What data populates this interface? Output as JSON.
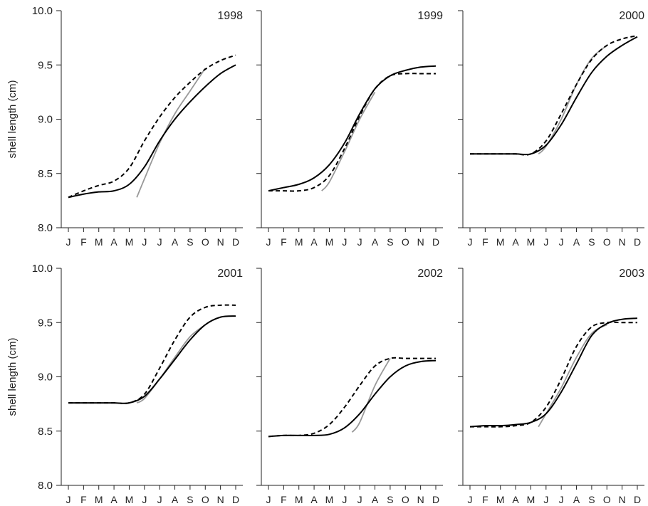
{
  "chart_data": {
    "type": "line",
    "ylabel": "shell length (cm)",
    "ylim": [
      8.0,
      10.0
    ],
    "yticks": [
      8.0,
      8.5,
      9.0,
      9.5,
      10.0
    ],
    "ytick_labels": [
      "8.0",
      "8.5",
      "9.0",
      "9.5",
      "10.0"
    ],
    "months": [
      "J",
      "F",
      "M",
      "A",
      "M",
      "J",
      "J",
      "A",
      "S",
      "O",
      "N",
      "D"
    ],
    "xlim": [
      1,
      12
    ],
    "legend": "none",
    "grid": false,
    "styles": {
      "solid": {
        "color": "#000000",
        "dash": ""
      },
      "dashed": {
        "color": "#000000",
        "dash": "6,4"
      },
      "gray": {
        "color": "#999999",
        "dash": ""
      }
    },
    "panels": [
      {
        "title": "1998",
        "series": [
          {
            "style": "solid",
            "points": [
              [
                1,
                8.28
              ],
              [
                2,
                8.31
              ],
              [
                3,
                8.33
              ],
              [
                4,
                8.34
              ],
              [
                5,
                8.4
              ],
              [
                6,
                8.56
              ],
              [
                7,
                8.8
              ],
              [
                8,
                9.0
              ],
              [
                9,
                9.16
              ],
              [
                10,
                9.3
              ],
              [
                11,
                9.42
              ],
              [
                12,
                9.5
              ]
            ]
          },
          {
            "style": "dashed",
            "points": [
              [
                1,
                8.28
              ],
              [
                2,
                8.34
              ],
              [
                3,
                8.39
              ],
              [
                4,
                8.43
              ],
              [
                5,
                8.55
              ],
              [
                6,
                8.8
              ],
              [
                7,
                9.02
              ],
              [
                8,
                9.2
              ],
              [
                9,
                9.34
              ],
              [
                10,
                9.46
              ],
              [
                11,
                9.54
              ],
              [
                12,
                9.59
              ]
            ]
          },
          {
            "style": "gray",
            "points": [
              [
                5.5,
                8.28
              ],
              [
                6,
                8.45
              ],
              [
                7,
                8.78
              ],
              [
                8,
                9.05
              ],
              [
                9,
                9.26
              ],
              [
                10,
                9.47
              ]
            ]
          }
        ]
      },
      {
        "title": "1999",
        "series": [
          {
            "style": "solid",
            "points": [
              [
                1,
                8.34
              ],
              [
                2,
                8.37
              ],
              [
                3,
                8.4
              ],
              [
                4,
                8.46
              ],
              [
                5,
                8.58
              ],
              [
                6,
                8.78
              ],
              [
                7,
                9.05
              ],
              [
                8,
                9.28
              ],
              [
                9,
                9.4
              ],
              [
                10,
                9.45
              ],
              [
                11,
                9.48
              ],
              [
                12,
                9.49
              ]
            ]
          },
          {
            "style": "dashed",
            "points": [
              [
                1,
                8.34
              ],
              [
                2,
                8.34
              ],
              [
                3,
                8.34
              ],
              [
                4,
                8.37
              ],
              [
                5,
                8.48
              ],
              [
                6,
                8.73
              ],
              [
                7,
                9.03
              ],
              [
                8,
                9.28
              ],
              [
                9,
                9.4
              ],
              [
                10,
                9.42
              ],
              [
                11,
                9.42
              ],
              [
                12,
                9.42
              ]
            ]
          },
          {
            "style": "gray",
            "points": [
              [
                4.5,
                8.34
              ],
              [
                5,
                8.42
              ],
              [
                6,
                8.7
              ],
              [
                7,
                9.0
              ],
              [
                8,
                9.25
              ]
            ]
          }
        ]
      },
      {
        "title": "2000",
        "series": [
          {
            "style": "solid",
            "points": [
              [
                1,
                8.68
              ],
              [
                2,
                8.68
              ],
              [
                3,
                8.68
              ],
              [
                4,
                8.68
              ],
              [
                5,
                8.68
              ],
              [
                6,
                8.76
              ],
              [
                7,
                8.95
              ],
              [
                8,
                9.2
              ],
              [
                9,
                9.43
              ],
              [
                10,
                9.58
              ],
              [
                11,
                9.68
              ],
              [
                12,
                9.76
              ]
            ]
          },
          {
            "style": "dashed",
            "points": [
              [
                1,
                8.68
              ],
              [
                2,
                8.68
              ],
              [
                3,
                8.68
              ],
              [
                4,
                8.68
              ],
              [
                5,
                8.68
              ],
              [
                6,
                8.8
              ],
              [
                7,
                9.05
              ],
              [
                8,
                9.32
              ],
              [
                9,
                9.55
              ],
              [
                10,
                9.68
              ],
              [
                11,
                9.74
              ],
              [
                12,
                9.77
              ]
            ]
          },
          {
            "style": "gray",
            "points": [
              [
                5.5,
                8.68
              ],
              [
                6,
                8.75
              ],
              [
                7,
                9.0
              ],
              [
                8,
                9.32
              ],
              [
                9,
                9.56
              ],
              [
                10,
                9.68
              ]
            ]
          }
        ]
      },
      {
        "title": "2001",
        "series": [
          {
            "style": "solid",
            "points": [
              [
                1,
                8.76
              ],
              [
                2,
                8.76
              ],
              [
                3,
                8.76
              ],
              [
                4,
                8.76
              ],
              [
                5,
                8.76
              ],
              [
                6,
                8.82
              ],
              [
                7,
                8.98
              ],
              [
                8,
                9.16
              ],
              [
                9,
                9.34
              ],
              [
                10,
                9.48
              ],
              [
                11,
                9.55
              ],
              [
                12,
                9.56
              ]
            ]
          },
          {
            "style": "dashed",
            "points": [
              [
                1,
                8.76
              ],
              [
                2,
                8.76
              ],
              [
                3,
                8.76
              ],
              [
                4,
                8.76
              ],
              [
                5,
                8.76
              ],
              [
                6,
                8.84
              ],
              [
                7,
                9.08
              ],
              [
                8,
                9.34
              ],
              [
                9,
                9.55
              ],
              [
                10,
                9.64
              ],
              [
                11,
                9.66
              ],
              [
                12,
                9.66
              ]
            ]
          },
          {
            "style": "gray",
            "points": [
              [
                5.5,
                8.76
              ],
              [
                6,
                8.8
              ],
              [
                7,
                8.98
              ],
              [
                8,
                9.18
              ],
              [
                9,
                9.37
              ],
              [
                10,
                9.48
              ]
            ]
          }
        ]
      },
      {
        "title": "2002",
        "series": [
          {
            "style": "solid",
            "points": [
              [
                1,
                8.45
              ],
              [
                2,
                8.46
              ],
              [
                3,
                8.46
              ],
              [
                4,
                8.46
              ],
              [
                5,
                8.47
              ],
              [
                6,
                8.53
              ],
              [
                7,
                8.66
              ],
              [
                8,
                8.84
              ],
              [
                9,
                9.0
              ],
              [
                10,
                9.1
              ],
              [
                11,
                9.14
              ],
              [
                12,
                9.15
              ]
            ]
          },
          {
            "style": "dashed",
            "points": [
              [
                1,
                8.45
              ],
              [
                2,
                8.46
              ],
              [
                3,
                8.46
              ],
              [
                4,
                8.48
              ],
              [
                5,
                8.56
              ],
              [
                6,
                8.72
              ],
              [
                7,
                8.92
              ],
              [
                8,
                9.1
              ],
              [
                9,
                9.17
              ],
              [
                10,
                9.17
              ],
              [
                11,
                9.17
              ],
              [
                12,
                9.17
              ]
            ]
          },
          {
            "style": "gray",
            "points": [
              [
                6.5,
                8.49
              ],
              [
                7,
                8.58
              ],
              [
                8,
                8.92
              ],
              [
                9,
                9.17
              ]
            ]
          }
        ]
      },
      {
        "title": "2003",
        "series": [
          {
            "style": "solid",
            "points": [
              [
                1,
                8.54
              ],
              [
                2,
                8.55
              ],
              [
                3,
                8.55
              ],
              [
                4,
                8.56
              ],
              [
                5,
                8.58
              ],
              [
                6,
                8.66
              ],
              [
                7,
                8.86
              ],
              [
                8,
                9.12
              ],
              [
                9,
                9.38
              ],
              [
                10,
                9.49
              ],
              [
                11,
                9.53
              ],
              [
                12,
                9.54
              ]
            ]
          },
          {
            "style": "dashed",
            "points": [
              [
                1,
                8.54
              ],
              [
                2,
                8.54
              ],
              [
                3,
                8.54
              ],
              [
                4,
                8.55
              ],
              [
                5,
                8.58
              ],
              [
                6,
                8.72
              ],
              [
                7,
                8.98
              ],
              [
                8,
                9.28
              ],
              [
                9,
                9.46
              ],
              [
                10,
                9.5
              ],
              [
                11,
                9.5
              ],
              [
                12,
                9.5
              ]
            ]
          },
          {
            "style": "gray",
            "points": [
              [
                5.5,
                8.54
              ],
              [
                6,
                8.66
              ],
              [
                7,
                8.9
              ],
              [
                8,
                9.18
              ],
              [
                9,
                9.4
              ],
              [
                10,
                9.48
              ]
            ]
          }
        ]
      }
    ]
  }
}
